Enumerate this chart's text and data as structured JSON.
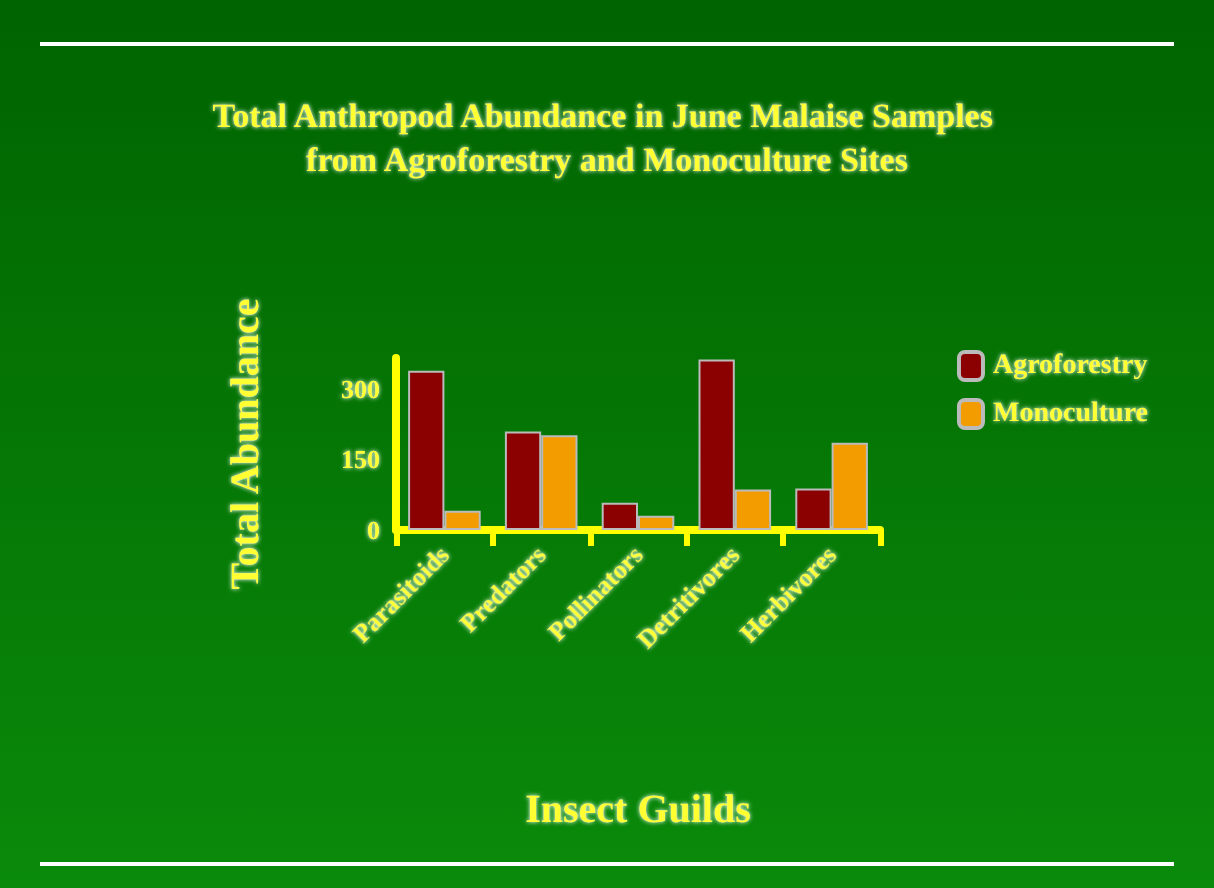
{
  "chart_data": {
    "type": "bar",
    "title": "Total Anthropod Abundance in June Malaise Samples from Agroforestry and Monoculture Sites",
    "xlabel": "Insect Guilds",
    "ylabel": "Total Abundance",
    "categories": [
      "Parasitoids",
      "Predators",
      "Pollinators",
      "Detritivores",
      "Herbivores"
    ],
    "series": [
      {
        "name": "Agroforestry",
        "color": "#8b0000",
        "values": [
          338,
          209,
          58,
          362,
          88
        ]
      },
      {
        "name": "Monoculture",
        "color": "#f39c00",
        "values": [
          41,
          201,
          30,
          86,
          185
        ]
      }
    ],
    "ylim": [
      0,
      365
    ],
    "yticks": [
      0,
      150,
      300
    ],
    "grid": false,
    "legend": "right"
  }
}
